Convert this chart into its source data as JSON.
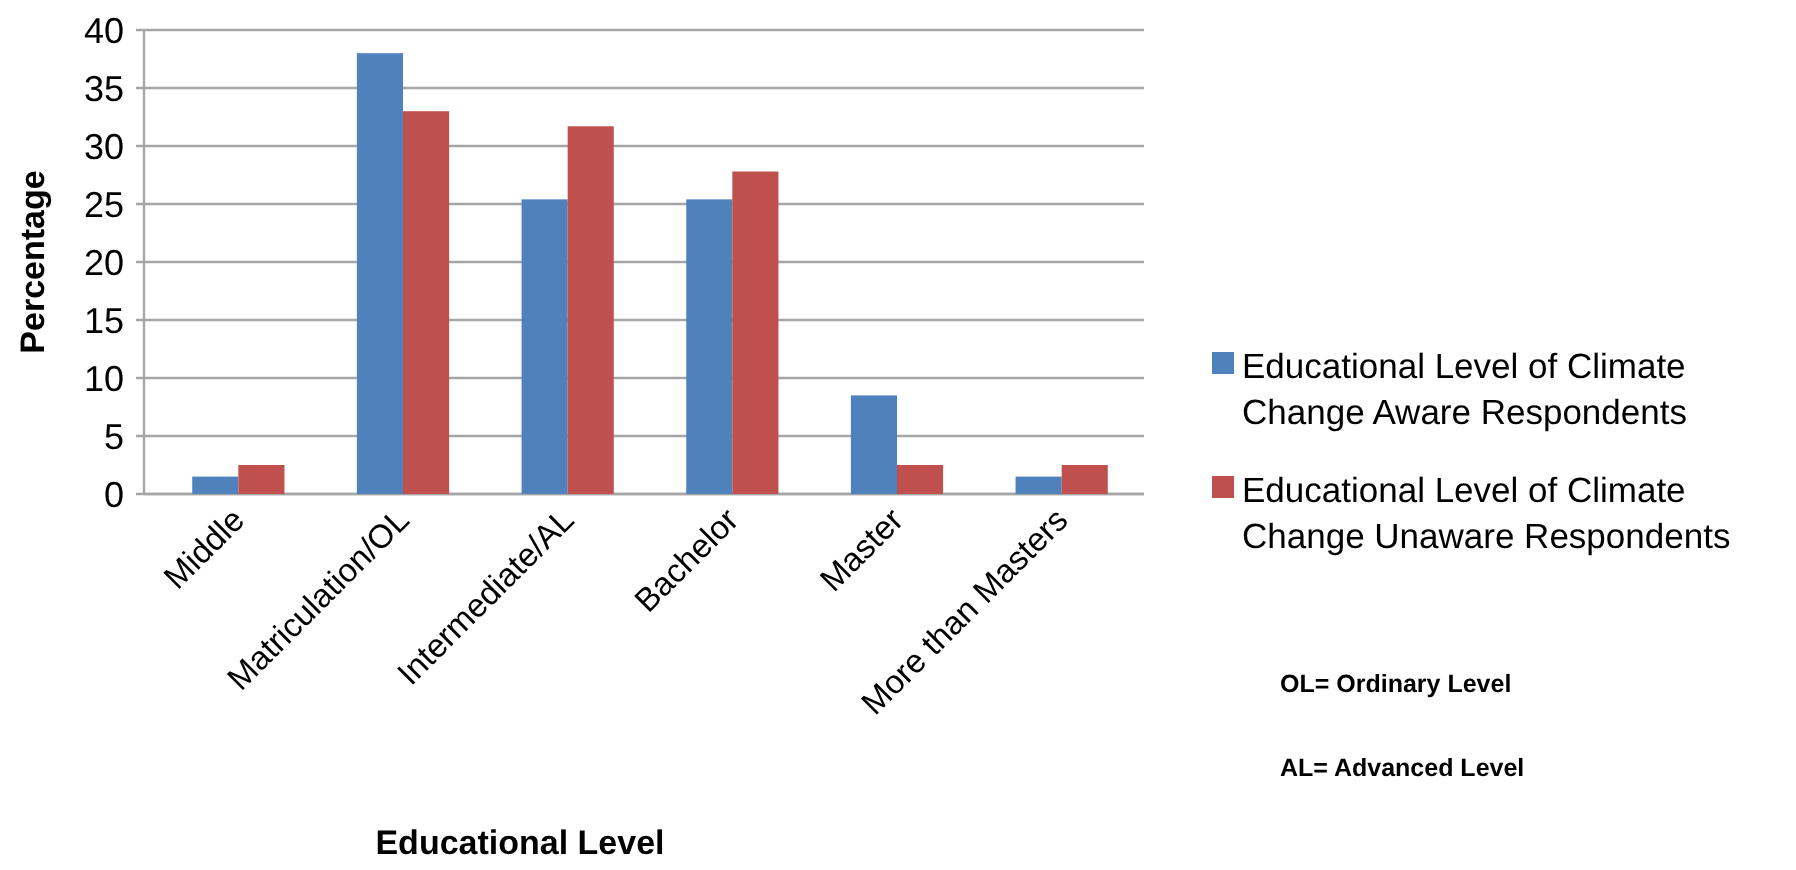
{
  "chart_data": {
    "type": "bar",
    "xlabel": "Educational Level",
    "ylabel": "Percentage",
    "categories": [
      "Middle",
      "Matriculation/OL",
      "Intermediate/AL",
      "Bachelor",
      "Master",
      "More than Masters"
    ],
    "series": [
      {
        "name": "Educational Level of Climate Change Aware Respondents",
        "color": "#4f81bd",
        "values": [
          1.5,
          38,
          25.4,
          25.4,
          8.5,
          1.5
        ]
      },
      {
        "name": "Educational Level of Climate Change Unaware Respondents",
        "color": "#c0504d",
        "values": [
          2.5,
          33,
          31.7,
          27.8,
          2.5,
          2.5
        ]
      }
    ],
    "ylim": [
      0,
      40
    ],
    "yticks": [
      0,
      5,
      10,
      15,
      20,
      25,
      30,
      35,
      40
    ],
    "grid": "y",
    "legend": "right",
    "annotations": [
      "OL= Ordinary Level",
      "AL= Advanced Level"
    ]
  }
}
